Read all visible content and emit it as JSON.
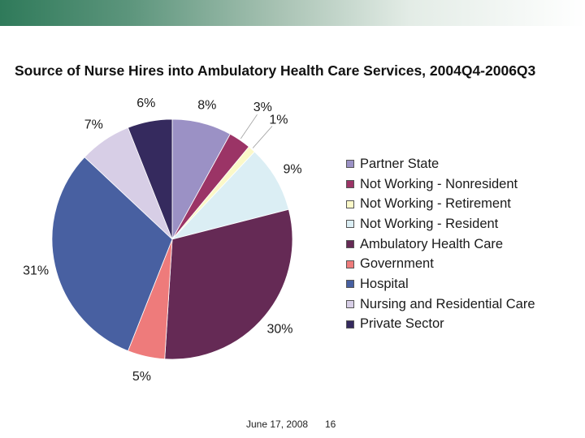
{
  "slide": {
    "date": "June 17, 2008",
    "page_number": "16",
    "accent_colors": [
      "#2f7a5a",
      "#a9c3b4",
      "#ffffff"
    ]
  },
  "chart_data": {
    "type": "pie",
    "title": "Source of Nurse Hires into Ambulatory Health Care Services, 2004Q4-2006Q3",
    "legend_position": "right",
    "slices": [
      {
        "label": "Partner State",
        "value": 8,
        "display": "8%",
        "color": "#9b91c5"
      },
      {
        "label": "Not Working - Nonresident",
        "value": 3,
        "display": "3%",
        "color": "#9b3466"
      },
      {
        "label": "Not Working - Retirement",
        "value": 1,
        "display": "1%",
        "color": "#fbf8c8"
      },
      {
        "label": "Not Working - Resident",
        "value": 9,
        "display": "9%",
        "color": "#dbeef4"
      },
      {
        "label": "Ambulatory Health Care",
        "value": 30,
        "display": "30%",
        "color": "#652a55"
      },
      {
        "label": "Government",
        "value": 5,
        "display": "5%",
        "color": "#ee7b7b"
      },
      {
        "label": "Hospital",
        "value": 31,
        "display": "31%",
        "color": "#4860a1"
      },
      {
        "label": "Nursing and Residential Care",
        "value": 7,
        "display": "7%",
        "color": "#d7cee6"
      },
      {
        "label": "Private Sector",
        "value": 6,
        "display": "6%",
        "color": "#352a5e"
      }
    ]
  }
}
